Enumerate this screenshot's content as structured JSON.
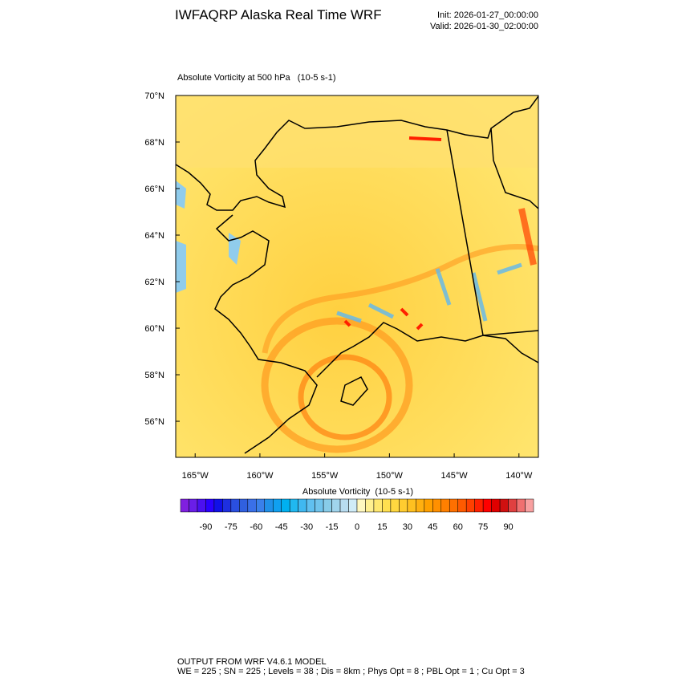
{
  "header": {
    "title": "IWFAQRP Alaska Real Time WRF",
    "init": "Init: 2026-01-27_00:00:00",
    "valid": "Valid: 2026-01-30_02:00:00"
  },
  "map": {
    "title": "Absolute Vorticity at 500 hPa   (10-5 s-1)",
    "xlim": [
      -166.5,
      -138.5
    ],
    "ylim": [
      54.45,
      70
    ],
    "xticks": [
      {
        "value": -165,
        "label": "165°W"
      },
      {
        "value": -160,
        "label": "160°W"
      },
      {
        "value": -155,
        "label": "155°W"
      },
      {
        "value": -150,
        "label": "150°W"
      },
      {
        "value": -145,
        "label": "145°W"
      },
      {
        "value": -140,
        "label": "140°W"
      }
    ],
    "yticks": [
      {
        "value": 70,
        "label": "70°N"
      },
      {
        "value": 68,
        "label": "68°N"
      },
      {
        "value": 66,
        "label": "66°N"
      },
      {
        "value": 64,
        "label": "64°N"
      },
      {
        "value": 62,
        "label": "62°N"
      },
      {
        "value": 60,
        "label": "60°N"
      },
      {
        "value": 58,
        "label": "58°N"
      },
      {
        "value": 56,
        "label": "56°N"
      }
    ]
  },
  "colorbar": {
    "title": "Absolute Vorticity  (10-5 s-1)",
    "range": [
      -105,
      105
    ],
    "ticks": [
      -90,
      -75,
      -60,
      -45,
      -30,
      -15,
      0,
      15,
      30,
      45,
      60,
      75,
      90
    ],
    "colors": [
      "#8020e0",
      "#6a1ee8",
      "#4b10f0",
      "#2a00ff",
      "#1010e8",
      "#1e2fe0",
      "#2a4fe0",
      "#3060e0",
      "#3a70e8",
      "#3a80ea",
      "#2090e8",
      "#10a0f0",
      "#00b0f0",
      "#20b8f0",
      "#40b8f0",
      "#60c0f0",
      "#70c4ec",
      "#88cce8",
      "#a0d4ec",
      "#b8dcf0",
      "#d0ecf8",
      "#fff8c0",
      "#fff090",
      "#ffe870",
      "#ffe050",
      "#ffd840",
      "#ffcc30",
      "#ffc020",
      "#ffb010",
      "#ffa000",
      "#ff9000",
      "#ff8000",
      "#ff7000",
      "#ff5a00",
      "#ff4000",
      "#ff2000",
      "#ff0000",
      "#e00000",
      "#d01010",
      "#e04040",
      "#f07070",
      "#f8a0a0"
    ]
  },
  "footer": {
    "line1": "OUTPUT FROM WRF V4.6.1 MODEL",
    "line2": "WE = 225 ; SN = 225 ; Levels = 38 ; Dis = 8km ; Phys Opt = 8 ; PBL Opt = 1 ; Cu Opt = 3"
  }
}
